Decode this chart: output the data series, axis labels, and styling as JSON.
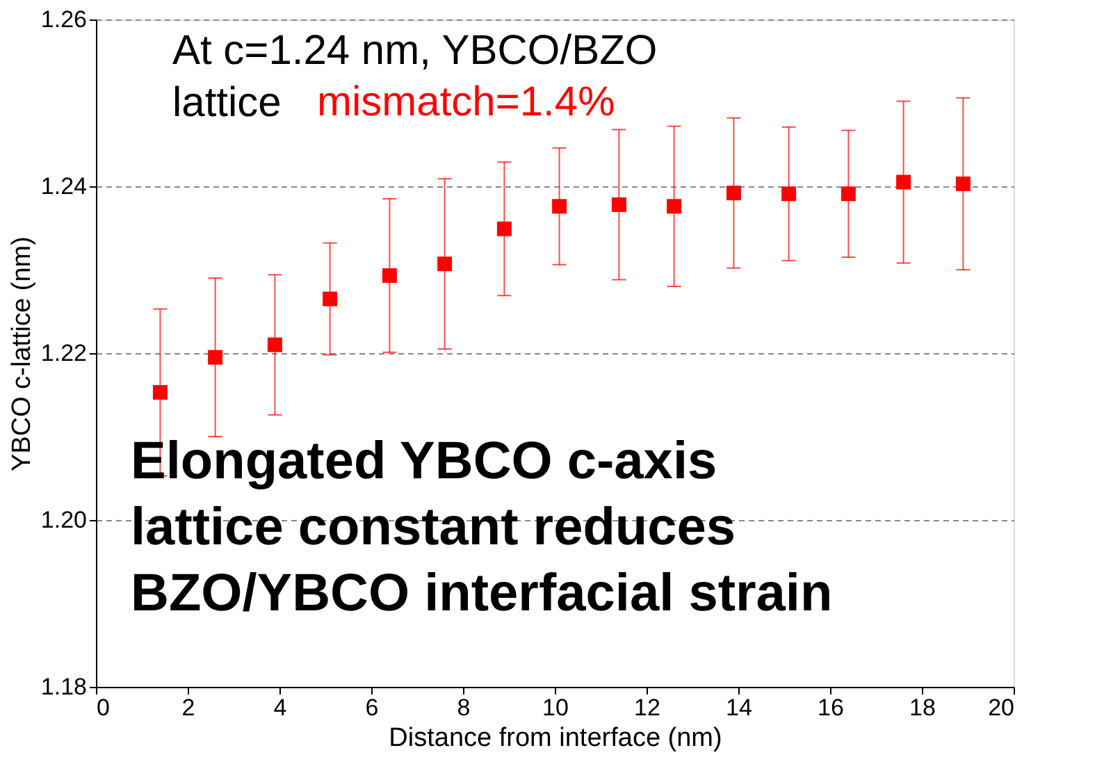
{
  "chart_data": {
    "type": "scatter",
    "xlabel": "Distance from interface (nm)",
    "ylabel": "YBCO c-lattice (nm)",
    "x": [
      1.4,
      2.6,
      3.9,
      5.1,
      6.4,
      7.6,
      8.9,
      10.1,
      11.4,
      12.6,
      13.9,
      15.1,
      16.4,
      17.6,
      18.9
    ],
    "series": [
      {
        "color": "#ff0000",
        "values": [
          1.2153,
          1.2195,
          1.221,
          1.2265,
          1.2293,
          1.2307,
          1.2349,
          1.2376,
          1.2378,
          1.2376,
          1.2392,
          1.2391,
          1.2391,
          1.2405,
          1.2403
        ],
        "errors": [
          0.01,
          0.0095,
          0.0084,
          0.0067,
          0.0092,
          0.0102,
          0.008,
          0.007,
          0.009,
          0.0096,
          0.009,
          0.008,
          0.0076,
          0.0097,
          0.0103
        ]
      }
    ],
    "xlim": [
      0,
      20
    ],
    "xticks": [
      0,
      2,
      4,
      6,
      8,
      10,
      12,
      14,
      16,
      18,
      20
    ],
    "ylim": [
      1.18,
      1.26
    ],
    "yticks": [
      {
        "value": 1.18,
        "label": "1.18"
      },
      {
        "value": 1.2,
        "label": "1.20"
      },
      {
        "value": 1.22,
        "label": "1.22"
      },
      {
        "value": 1.24,
        "label": "1.24"
      },
      {
        "value": 1.26,
        "label": "1.26"
      }
    ],
    "grid": "y",
    "marker": "square",
    "annotations": [
      "At c=1.24 nm, YBCO/BZO\nlattice",
      "mismatch=1.4%",
      "Elongated YBCO c-axis\nlattice constant reduces\nBZO/YBCO interfacial strain"
    ]
  }
}
